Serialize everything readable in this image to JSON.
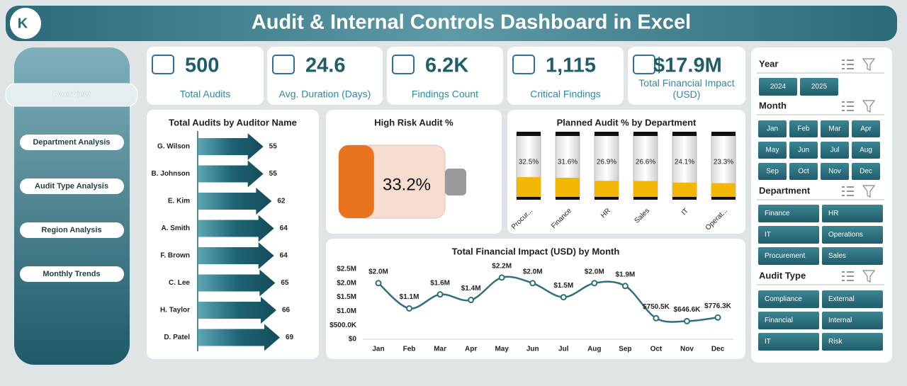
{
  "header": {
    "title": "Audit & Internal Controls Dashboard in Excel"
  },
  "nav": [
    "Overview",
    "Department Analysis",
    "Audit Type Analysis",
    "Region Analysis",
    "Monthly Trends"
  ],
  "kpis": [
    {
      "value": "500",
      "label": "Total Audits"
    },
    {
      "value": "24.6",
      "label": "Avg. Duration (Days)"
    },
    {
      "value": "6.2K",
      "label": "Findings Count"
    },
    {
      "value": "1,115",
      "label": "Critical Findings"
    },
    {
      "value": "$17.9M",
      "label": "Total Financial Impact (USD)"
    }
  ],
  "slicers": [
    {
      "title": "Year",
      "items": [
        "2024",
        "2025"
      ]
    },
    {
      "title": "Month",
      "items": [
        "Jan",
        "Feb",
        "Mar",
        "Apr",
        "May",
        "Jun",
        "Jul",
        "Aug",
        "Sep",
        "Oct",
        "Nov",
        "Dec"
      ]
    },
    {
      "title": "Department",
      "items": [
        "Finance",
        "HR",
        "IT",
        "Operations",
        "Procurement",
        "Sales"
      ]
    },
    {
      "title": "Audit Type",
      "items": [
        "Compliance",
        "External",
        "Financial",
        "Internal",
        "IT",
        "Risk"
      ]
    }
  ],
  "chart_data": [
    {
      "type": "hbar",
      "title": "Total Audits by Auditor Name",
      "categories": [
        "G. Wilson",
        "B. Johnson",
        "E. Kim",
        "A. Smith",
        "F. Brown",
        "C. Lee",
        "H. Taylor",
        "D. Patel"
      ],
      "values": [
        55,
        55,
        62,
        64,
        64,
        65,
        66,
        69
      ],
      "color": "#1d6475"
    },
    {
      "type": "gauge",
      "title": "High  Risk Audit %",
      "values": [
        33.2
      ],
      "value_labels": [
        "33.2%"
      ],
      "color": "#e8741e"
    },
    {
      "type": "cylinder",
      "title": "Planned Audit % by Department",
      "categories": [
        "Procur...",
        "Finance",
        "HR",
        "Sales",
        "IT",
        "Operat..."
      ],
      "values": [
        32.5,
        31.6,
        26.9,
        26.6,
        24.1,
        23.3
      ],
      "value_labels": [
        "32.5%",
        "31.6%",
        "26.9%",
        "26.6%",
        "24.1%",
        "23.3%"
      ],
      "color": "#f2b705"
    },
    {
      "type": "line",
      "title": "Total Financial Impact (USD) by Month",
      "categories": [
        "Jan",
        "Feb",
        "Mar",
        "Apr",
        "May",
        "Jun",
        "Jul",
        "Aug",
        "Sep",
        "Oct",
        "Nov",
        "Dec"
      ],
      "values": [
        2000000,
        1100000,
        1600000,
        1400000,
        2200000,
        2000000,
        1500000,
        2000000,
        1900000,
        750500,
        646600,
        776300
      ],
      "value_labels": [
        "$2.0M",
        "$1.1M",
        "$1.6M",
        "$1.4M",
        "$2.2M",
        "$2.0M",
        "$1.5M",
        "$2.0M",
        "$1.9M",
        "$750.5K",
        "$646.6K",
        "$776.3K"
      ],
      "ylim": [
        0,
        2500000
      ],
      "yticks": [
        {
          "value": 0,
          "label": "$0"
        },
        {
          "value": 500000,
          "label": "$500.0K"
        },
        {
          "value": 1000000,
          "label": "$1.0M"
        },
        {
          "value": 1500000,
          "label": "$1.5M"
        },
        {
          "value": 2000000,
          "label": "$2.0M"
        },
        {
          "value": 2500000,
          "label": "$2.5M"
        }
      ],
      "color": "#2f6f7e",
      "grid": false
    }
  ]
}
